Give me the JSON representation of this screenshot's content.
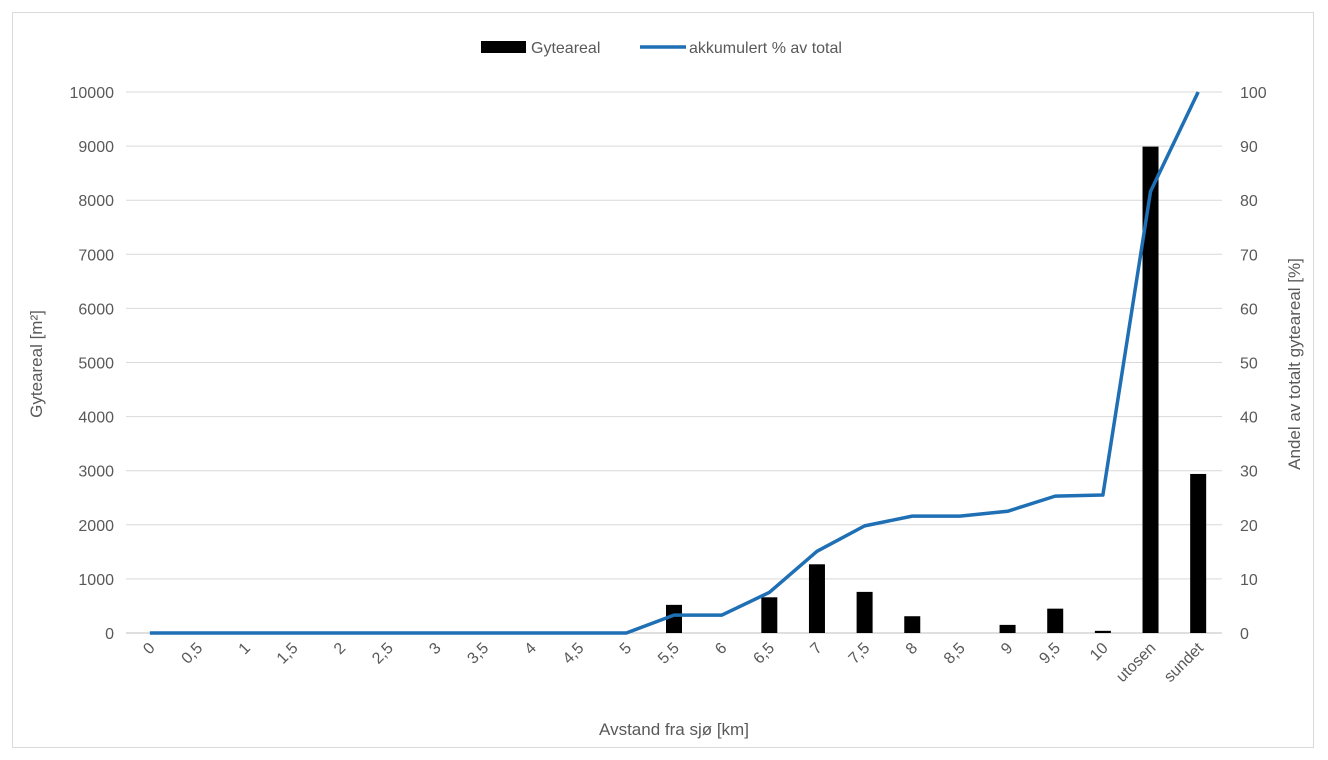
{
  "chart_data": {
    "type": "bar",
    "categories": [
      "0",
      "0,5",
      "1",
      "1,5",
      "2",
      "2,5",
      "3",
      "3,5",
      "4",
      "4,5",
      "5",
      "5,5",
      "6",
      "6,5",
      "7",
      "7,5",
      "8",
      "8,5",
      "9",
      "9,5",
      "10",
      "utosen",
      "sundet"
    ],
    "series": [
      {
        "name": "Gyteareal",
        "type": "bar",
        "axis": "left",
        "color": "#000000",
        "values": [
          0,
          0,
          0,
          0,
          0,
          0,
          0,
          0,
          0,
          0,
          0,
          520,
          0,
          660,
          1270,
          760,
          310,
          0,
          150,
          450,
          40,
          8990,
          2940
        ]
      },
      {
        "name": "akkumulert % av total",
        "type": "line",
        "axis": "right",
        "color": "#1f6fb5",
        "values": [
          0,
          0,
          0,
          0,
          0,
          0,
          0,
          0,
          0,
          0,
          0,
          3.3,
          3.3,
          7.5,
          15.1,
          19.8,
          21.6,
          21.6,
          22.5,
          25.3,
          25.5,
          81.6,
          100
        ]
      }
    ],
    "xlabel": "Avstand fra sjø [km]",
    "ylabel": "Gyteareal [m²]",
    "y2label": "Andel av totalt gyteareal [%]",
    "ylim": [
      0,
      10000
    ],
    "y2lim": [
      0,
      100
    ],
    "yticks": [
      "0",
      "1000",
      "2000",
      "3000",
      "4000",
      "5000",
      "6000",
      "7000",
      "8000",
      "9000",
      "10000"
    ],
    "y2ticks": [
      "0",
      "10",
      "20",
      "30",
      "40",
      "50",
      "60",
      "70",
      "80",
      "90",
      "100"
    ],
    "grid": true,
    "legend": "top-center"
  }
}
